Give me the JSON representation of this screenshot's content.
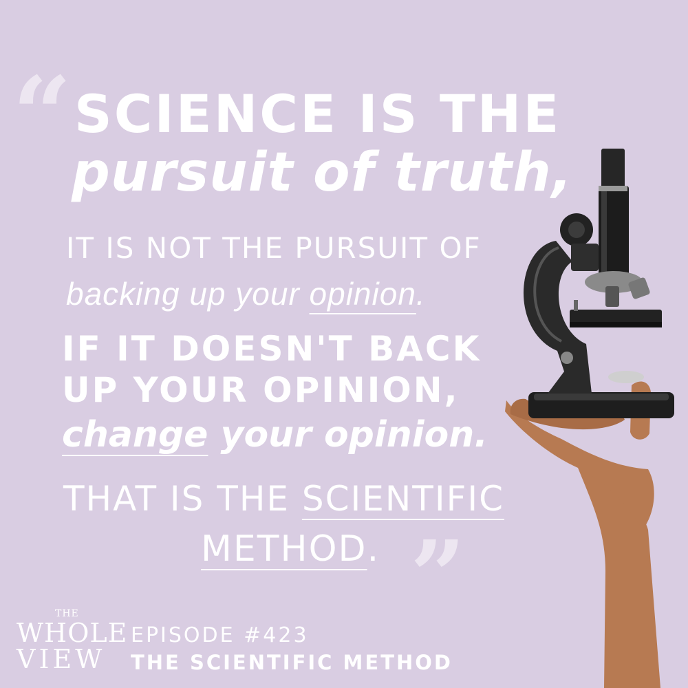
{
  "quote": {
    "open_mark": "“",
    "close_mark": "”",
    "line1": "SCIENCE IS THE",
    "line2": "pursuit of truth,",
    "line3": "IT IS NOT THE PURSUIT OF",
    "line4_prefix": "backing up your ",
    "line4_underlined": "opinion",
    "line4_suffix": ".",
    "line5": "IF IT DOESN'T BACK",
    "line6": "UP YOUR OPINION,",
    "line7_underlined": "change",
    "line7_suffix": " your opinion.",
    "line8_prefix": "THAT IS THE ",
    "line8_underlined": "SCIENTIFIC",
    "line9_underlined": "METHOD",
    "line9_suffix": "."
  },
  "logo": {
    "the": "THE",
    "whole": "WHOLE",
    "view": "VIEW"
  },
  "episode": {
    "label": "EPISODE #423",
    "title": "THE SCIENTIFIC METHOD"
  },
  "illustration": {
    "subject": "hand-holding-microscope-illustration"
  },
  "colors": {
    "background": "#d9cde2",
    "text": "#ffffff",
    "quote_marks": "#ede6f1",
    "skin": "#b77a52",
    "microscope": "#1e1e1e"
  }
}
